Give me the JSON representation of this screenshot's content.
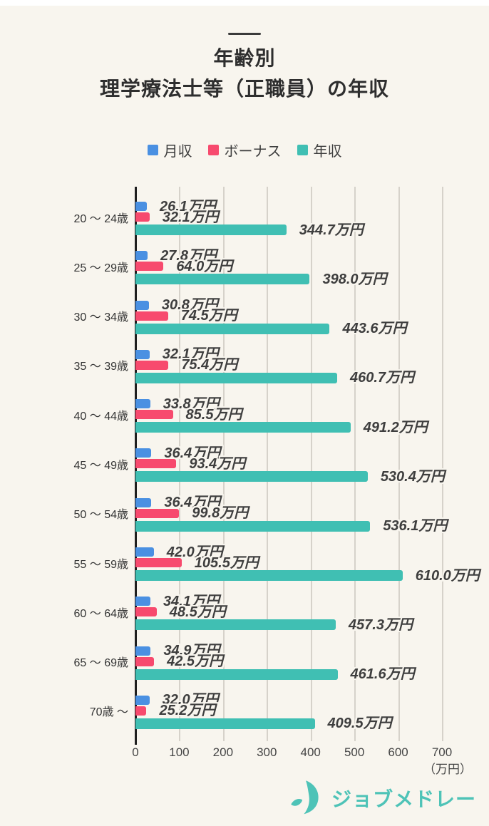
{
  "header": {
    "title_line1": "年齢別",
    "title_line2": "理学療法士等（正職員）の年収"
  },
  "chart_data": {
    "type": "bar",
    "orientation": "horizontal",
    "title": "年齢別 理学療法士等（正職員）の年収",
    "categories": [
      "20 ～ 24歳",
      "25 ～ 29歳",
      "30 ～ 34歳",
      "35 ～ 39歳",
      "40 ～ 44歳",
      "45 ～ 49歳",
      "50 ～ 54歳",
      "55 ～ 59歳",
      "60 ～ 64歳",
      "65 ～ 69歳",
      "70歳 ～"
    ],
    "series": [
      {
        "name": "月収",
        "color": "#4a90e2",
        "values": [
          26.1,
          27.8,
          30.8,
          32.1,
          33.8,
          36.4,
          36.4,
          42.0,
          34.1,
          34.9,
          32.0
        ]
      },
      {
        "name": "ボーナス",
        "color": "#f74a6e",
        "values": [
          32.1,
          64.0,
          74.5,
          75.4,
          85.5,
          93.4,
          99.8,
          105.5,
          48.5,
          42.5,
          25.2
        ]
      },
      {
        "name": "年収",
        "color": "#40bfb3",
        "values": [
          344.7,
          398.0,
          443.6,
          460.7,
          491.2,
          530.4,
          536.1,
          610.0,
          457.3,
          461.6,
          409.5
        ]
      }
    ],
    "value_suffix": "万円",
    "xlim": [
      0,
      700
    ],
    "x_ticks": [
      0,
      100,
      200,
      300,
      400,
      500,
      600,
      700
    ],
    "x_unit_label": "（万円）",
    "legend_position": "top",
    "grid": true,
    "background_color": "#f8f5ee"
  },
  "footer": {
    "logo_text": "ジョブメドレー",
    "logo_color": "#4ec3b7"
  }
}
